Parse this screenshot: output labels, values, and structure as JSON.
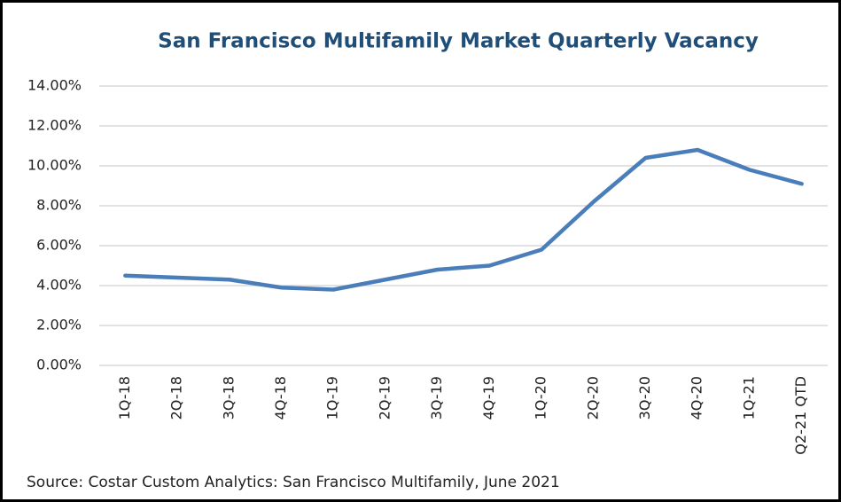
{
  "chart_data": {
    "type": "line",
    "title": "San Francisco  Multifamily Market Quarterly Vacancy",
    "source": "Source: Costar Custom Analytics: San Francisco Multifamily, June 2021",
    "categories": [
      "1Q-18",
      "2Q-18",
      "3Q-18",
      "4Q-18",
      "1Q-19",
      "2Q-19",
      "3Q-19",
      "4Q-19",
      "1Q-20",
      "2Q-20",
      "3Q-20",
      "4Q-20",
      "1Q-21",
      "Q2-21 QTD"
    ],
    "series": [
      {
        "name": "Vacancy",
        "color": "#4a7ebb",
        "values": [
          4.5,
          4.4,
          4.3,
          3.9,
          3.8,
          4.3,
          4.8,
          5.0,
          5.8,
          8.2,
          10.4,
          10.8,
          9.8,
          9.1
        ]
      }
    ],
    "ylim": [
      0,
      14
    ],
    "yticks": [
      {
        "value": 0,
        "label": "0.00%"
      },
      {
        "value": 2,
        "label": "2.00%"
      },
      {
        "value": 4,
        "label": "4.00%"
      },
      {
        "value": 6,
        "label": "6.00%"
      },
      {
        "value": 8,
        "label": "8.00%"
      },
      {
        "value": 10,
        "label": "10.00%"
      },
      {
        "value": 12,
        "label": "12.00%"
      },
      {
        "value": 14,
        "label": "14.00%"
      }
    ],
    "grid": true
  }
}
